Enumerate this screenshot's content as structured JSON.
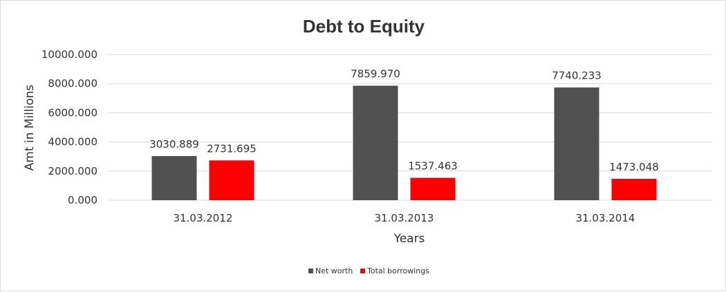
{
  "chart_data": {
    "type": "bar",
    "title": "Debt to Equity",
    "xlabel": "Years",
    "ylabel": "Amt in Millions",
    "categories": [
      "31.03.2012",
      "31.03.2013",
      "31.03.2014"
    ],
    "series": [
      {
        "name": "Net worth",
        "values": [
          3030.889,
          7859.97,
          7740.233
        ],
        "labels": [
          "3030.889",
          "7859.970",
          "7740.233"
        ],
        "color": "#505050"
      },
      {
        "name": "Total borrowings",
        "values": [
          2731.695,
          1537.463,
          1473.048
        ],
        "labels": [
          "2731.695",
          "1537.463",
          "1473.048"
        ],
        "color": "#ff0000"
      }
    ],
    "ylim": [
      0,
      10000
    ],
    "yticks": [
      "0.000",
      "2000.000",
      "4000.000",
      "6000.000",
      "8000.000",
      "10000.000"
    ],
    "grid": true,
    "legend_position": "bottom"
  }
}
